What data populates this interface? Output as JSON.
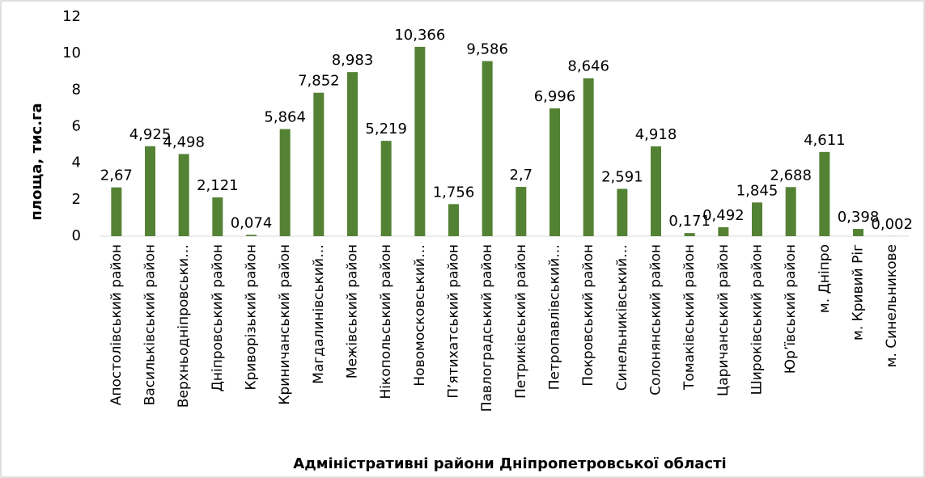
{
  "chart_data": {
    "type": "bar",
    "x_label": "Адміністративні райони Дніпропетровської області",
    "y_label": "площа, тис.га",
    "categories": [
      "Апостолівський район",
      "Васильківський район",
      "Верхньодніпровськи…",
      "Дніпровський район",
      "Криворізький район",
      "Криничанський район",
      "Магдалинівський…",
      "Межівський район",
      "Нікопольський район",
      "Новомосковський…",
      "П’ятихатський район",
      "Павлоградський район",
      "Петриківський район",
      "Петропавлівський…",
      "Покровський район",
      "Синельниківський…",
      "Солонянський район",
      "Томаківський район",
      "Царичанський район",
      "Широківський район",
      "Юр’ївський район",
      "м. Дніпро",
      "м. Кривий Ріг",
      "м. Синельникове"
    ],
    "values": [
      2.67,
      4.925,
      4.498,
      2.121,
      0.074,
      5.864,
      7.852,
      8.983,
      5.219,
      10.366,
      1.756,
      9.586,
      2.7,
      6.996,
      8.646,
      2.591,
      4.918,
      0.171,
      0.492,
      1.845,
      2.688,
      4.611,
      0.398,
      0.002
    ],
    "value_labels": [
      "2,67",
      "4,925",
      "4,498",
      "2,121",
      "0,074",
      "5,864",
      "7,852",
      "8,983",
      "5,219",
      "10,366",
      "1,756",
      "9,586",
      "2,7",
      "6,996",
      "8,646",
      "2,591",
      "4,918",
      "0,171",
      "0,492",
      "1,845",
      "2,688",
      "4,611",
      "0,398",
      "0,002"
    ],
    "color": "#548235",
    "ylim": [
      0,
      12
    ],
    "yticks": [
      0,
      2,
      4,
      6,
      8,
      10,
      12
    ],
    "grid": false
  }
}
